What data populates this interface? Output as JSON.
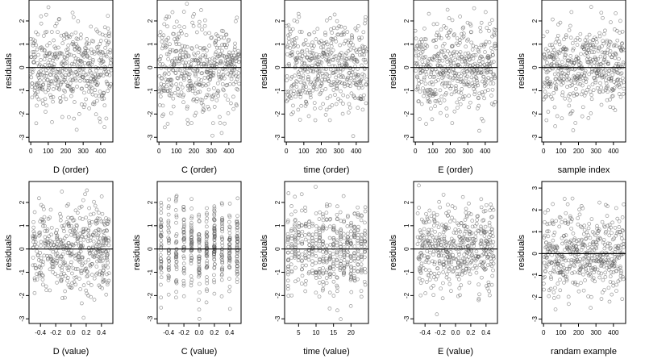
{
  "chart_data": [
    {
      "type": "scatter",
      "xlabel": "D (order)",
      "ylabel": "residuals",
      "xlim": [
        -10,
        470
      ],
      "ylim": [
        -3.2,
        2.9
      ],
      "xticks": [
        "0",
        "100",
        "200",
        "300",
        "400"
      ],
      "yticks": [
        "-3",
        "-2",
        "-1",
        "0",
        "1",
        "2"
      ],
      "reference_line": 0,
      "points_description": "about 470 residuals plotted against observation order",
      "n": 470,
      "mode": "order",
      "seed": 11
    },
    {
      "type": "scatter",
      "xlabel": "C (order)",
      "ylabel": "residuals",
      "xlim": [
        -10,
        470
      ],
      "ylim": [
        -3.2,
        2.9
      ],
      "xticks": [
        "0",
        "100",
        "200",
        "300",
        "400"
      ],
      "yticks": [
        "-3",
        "-2",
        "-1",
        "0",
        "1",
        "2"
      ],
      "reference_line": 0,
      "n": 470,
      "mode": "order",
      "seed": 23
    },
    {
      "type": "scatter",
      "xlabel": "time (order)",
      "ylabel": "residuals",
      "xlim": [
        -10,
        470
      ],
      "ylim": [
        -3.2,
        2.9
      ],
      "xticks": [
        "0",
        "100",
        "200",
        "300",
        "400"
      ],
      "yticks": [
        "-3",
        "-2",
        "-1",
        "0",
        "1",
        "2"
      ],
      "reference_line": 0,
      "n": 470,
      "mode": "order",
      "seed": 37
    },
    {
      "type": "scatter",
      "xlabel": "E (order)",
      "ylabel": "residuals",
      "xlim": [
        -10,
        470
      ],
      "ylim": [
        -3.2,
        2.9
      ],
      "xticks": [
        "0",
        "100",
        "200",
        "300",
        "400"
      ],
      "yticks": [
        "-3",
        "-2",
        "-1",
        "0",
        "1",
        "2"
      ],
      "reference_line": 0,
      "n": 470,
      "mode": "order",
      "seed": 41
    },
    {
      "type": "scatter",
      "xlabel": "sample index",
      "ylabel": "residuals",
      "xlim": [
        -10,
        470
      ],
      "ylim": [
        -3.2,
        2.9
      ],
      "xticks": [
        "0",
        "100",
        "200",
        "300",
        "400"
      ],
      "yticks": [
        "-3",
        "-2",
        "-1",
        "0",
        "1",
        "2"
      ],
      "reference_line": 0,
      "n": 470,
      "mode": "order",
      "seed": 53
    },
    {
      "type": "scatter",
      "xlabel": "D (value)",
      "ylabel": "residuals",
      "xlim": [
        -0.55,
        0.55
      ],
      "ylim": [
        -3.2,
        2.9
      ],
      "xticks": [
        "-0.4",
        "-0.2",
        "0.0",
        "0.2",
        "0.4"
      ],
      "xtick_values": [
        -0.4,
        -0.2,
        0,
        0.2,
        0.4
      ],
      "yticks": [
        "-3",
        "-2",
        "-1",
        "0",
        "1",
        "2"
      ],
      "reference_line": 0,
      "n": 470,
      "mode": "value",
      "seed": 61
    },
    {
      "type": "scatter",
      "xlabel": "C (value)",
      "ylabel": "residuals",
      "xlim": [
        -0.55,
        0.55
      ],
      "ylim": [
        -3.2,
        2.9
      ],
      "xticks": [
        "-0.4",
        "-0.2",
        "0.0",
        "0.2",
        "0.4"
      ],
      "xtick_values": [
        -0.4,
        -0.2,
        0,
        0.2,
        0.4
      ],
      "yticks": [
        "-3",
        "-2",
        "-1",
        "0",
        "1",
        "2"
      ],
      "reference_line": 0,
      "n": 470,
      "mode": "columns",
      "columns": [
        -0.5,
        -0.4,
        -0.3,
        -0.2,
        -0.1,
        0,
        0.1,
        0.2,
        0.3,
        0.4,
        0.5
      ],
      "seed": 71
    },
    {
      "type": "scatter",
      "xlabel": "time (value)",
      "ylabel": "residuals",
      "xlim": [
        1,
        25
      ],
      "ylim": [
        -3.2,
        2.9
      ],
      "xticks": [
        "5",
        "10",
        "15",
        "20"
      ],
      "xtick_values": [
        5,
        10,
        15,
        20
      ],
      "yticks": [
        "-3",
        "-2",
        "-1",
        "0",
        "1",
        "2"
      ],
      "reference_line": 0,
      "n": 470,
      "mode": "columns",
      "columns": [
        2,
        3,
        4,
        5,
        6,
        7,
        8,
        9,
        10,
        11,
        12,
        13,
        14,
        15,
        16,
        17,
        18,
        19,
        20,
        21,
        22,
        23,
        24
      ],
      "seed": 83
    },
    {
      "type": "scatter",
      "xlabel": "E (value)",
      "ylabel": "residuals",
      "xlim": [
        -0.55,
        0.55
      ],
      "ylim": [
        -3.2,
        2.9
      ],
      "xticks": [
        "-0.4",
        "-0.2",
        "0.0",
        "0.2",
        "0.4"
      ],
      "xtick_values": [
        -0.4,
        -0.2,
        0,
        0.2,
        0.4
      ],
      "yticks": [
        "-3",
        "-2",
        "-1",
        "0",
        "1",
        "2"
      ],
      "reference_line": 0,
      "n": 470,
      "mode": "value",
      "seed": 97
    },
    {
      "type": "scatter",
      "xlabel": "randam example",
      "ylabel": "residuals",
      "xlim": [
        -10,
        470
      ],
      "ylim": [
        -3.2,
        3.3
      ],
      "xticks": [
        "0",
        "100",
        "200",
        "300",
        "400"
      ],
      "yticks": [
        "-3",
        "-2",
        "-1",
        "0",
        "1",
        "2",
        "3"
      ],
      "reference_line": 0,
      "n": 470,
      "mode": "order",
      "seed": 103
    }
  ]
}
